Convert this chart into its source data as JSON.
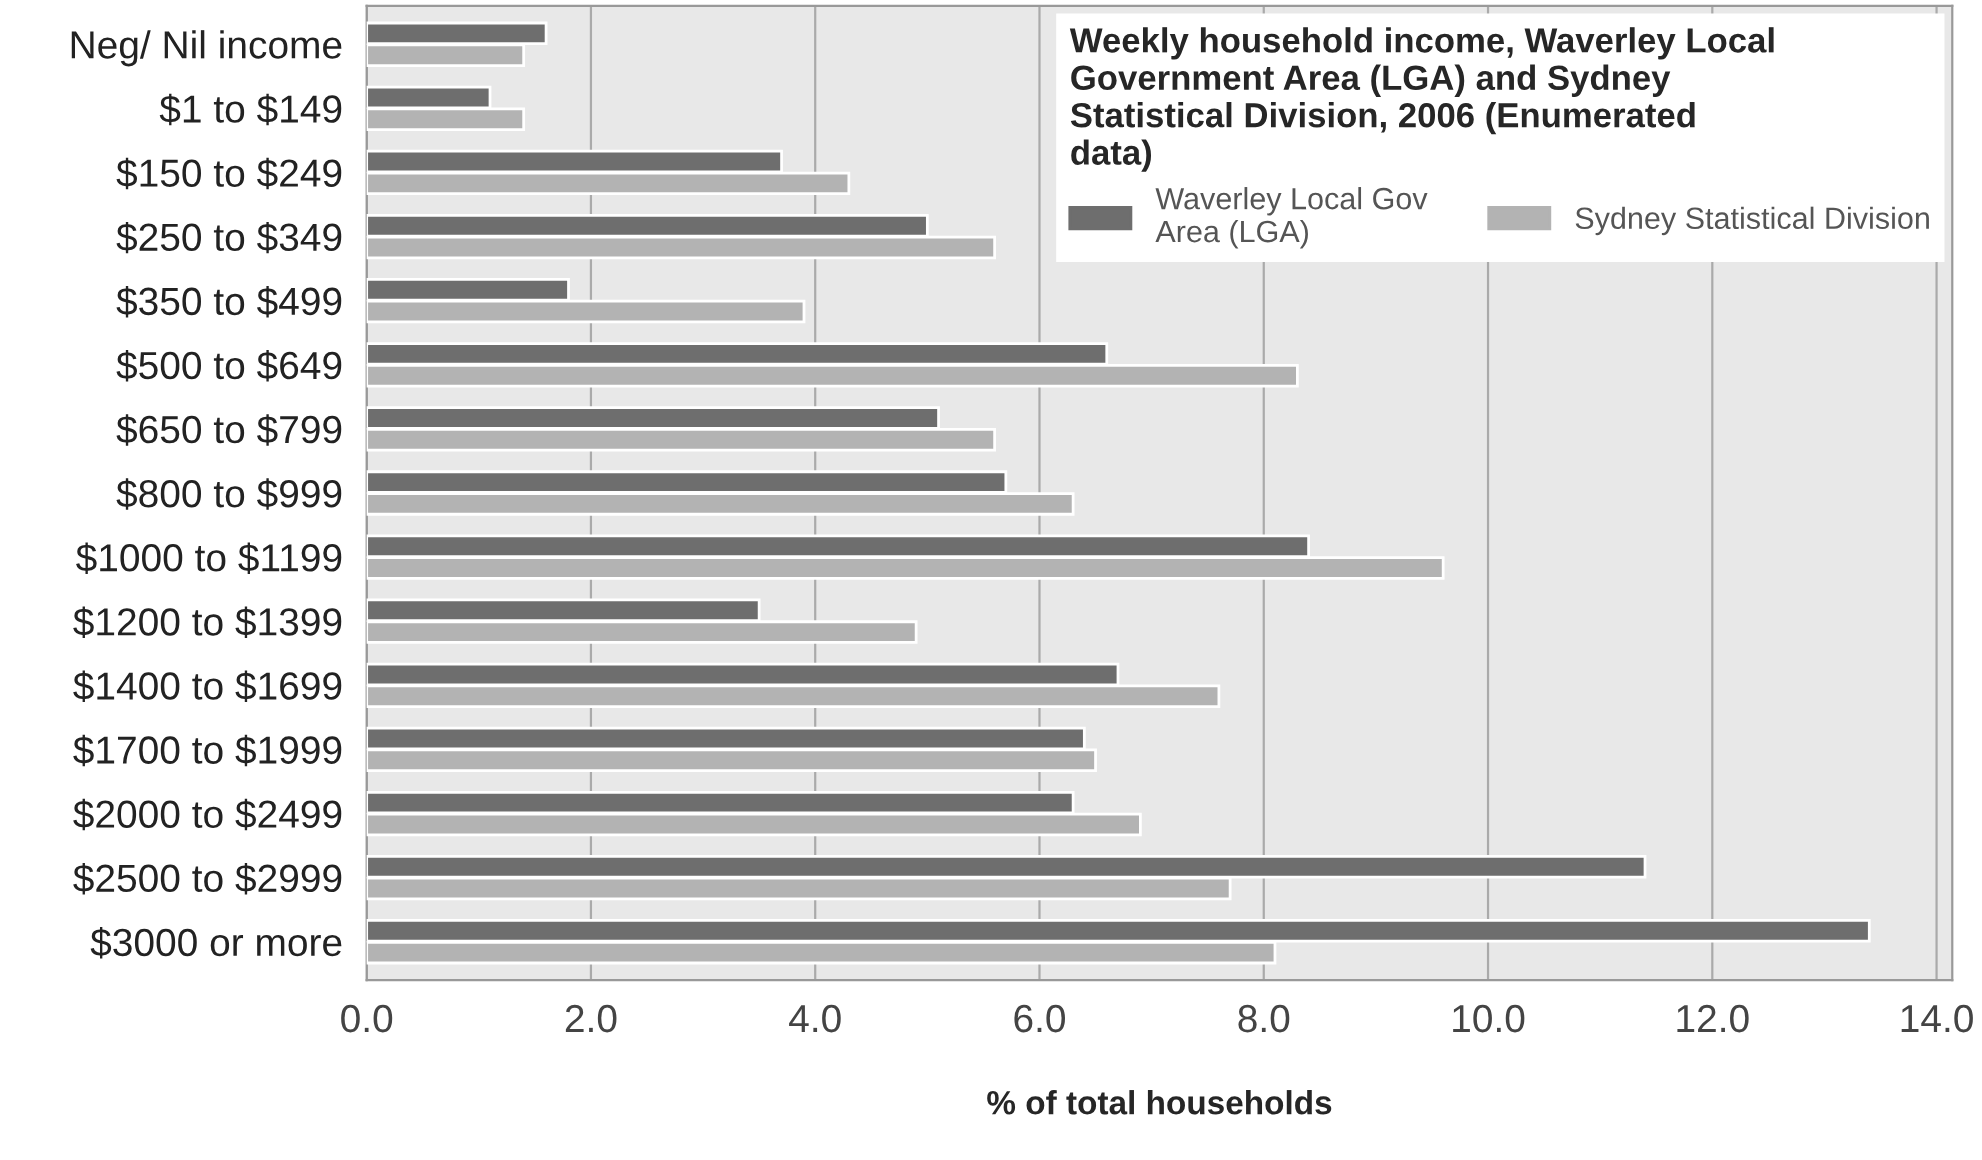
{
  "chart_data": {
    "type": "bar",
    "orientation": "horizontal",
    "legend_title": "Weekly household income, Waverley Local Government Area (LGA) and Sydney Statistical Division, 2006 (Enumerated data)",
    "xlabel": "% of total households",
    "categories": [
      "Neg/ Nil income",
      "$1 to $149",
      "$150 to $249",
      "$250 to $349",
      "$350 to $499",
      "$500 to $649",
      "$650 to $799",
      "$800 to $999",
      "$1000 to $1199",
      "$1200 to $1399",
      "$1400 to $1699",
      "$1700 to $1999",
      "$2000 to $2499",
      "$2500 to $2999",
      "$3000 or more"
    ],
    "series": [
      {
        "name": "Waverley Local Gov\nArea (LGA)",
        "color": "#6e6e6e",
        "values": [
          1.6,
          1.1,
          3.7,
          5.0,
          1.8,
          6.6,
          5.1,
          5.7,
          8.4,
          3.5,
          6.7,
          6.4,
          6.3,
          11.4,
          13.4
        ]
      },
      {
        "name": "Sydney Statistical Division",
        "color": "#b3b3b3",
        "values": [
          1.4,
          1.4,
          4.3,
          5.6,
          3.9,
          8.3,
          5.6,
          6.3,
          9.6,
          4.9,
          7.6,
          6.5,
          6.9,
          7.7,
          8.1
        ]
      }
    ],
    "xlim": [
      0,
      14
    ],
    "xticks": [
      {
        "value": 0,
        "label": "0.0"
      },
      {
        "value": 2,
        "label": "2.0"
      },
      {
        "value": 4,
        "label": "4.0"
      },
      {
        "value": 6,
        "label": "6.0"
      },
      {
        "value": 8,
        "label": "8.0"
      },
      {
        "value": 10,
        "label": "10.0"
      },
      {
        "value": 12,
        "label": "12.0"
      },
      {
        "value": 14,
        "label": "14.0"
      }
    ],
    "grid": "x",
    "legend": "top right"
  }
}
